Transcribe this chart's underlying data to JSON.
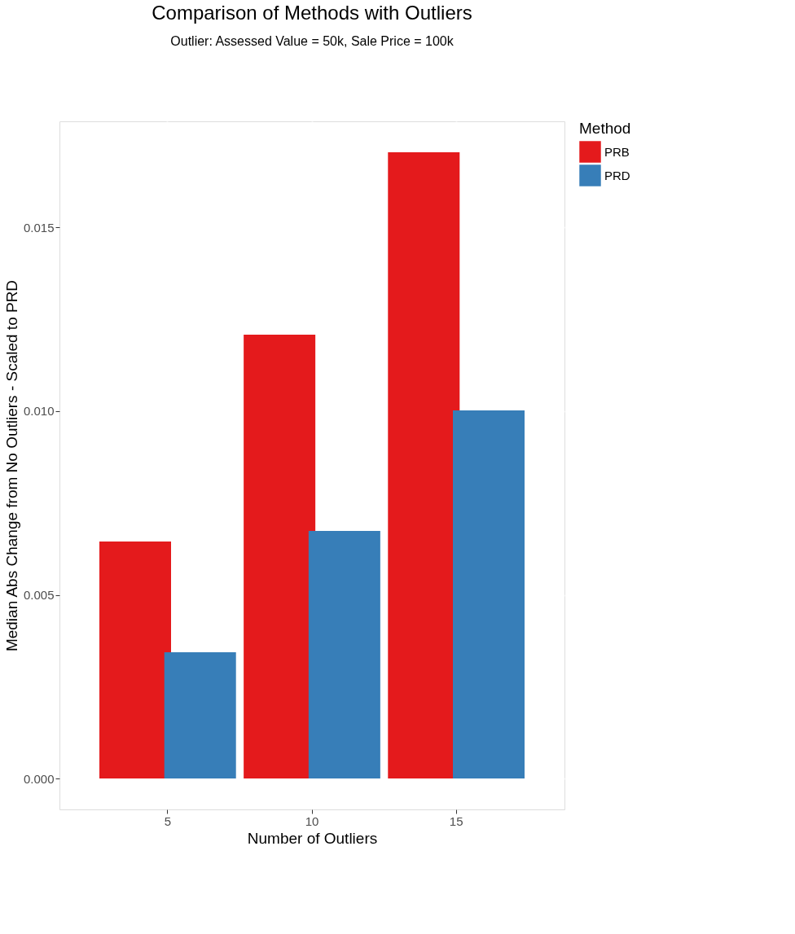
{
  "chart_data": {
    "type": "bar",
    "title": "Comparison of Methods with Outliers",
    "subtitle": "Outlier: Assessed Value = 50k, Sale Price = 100k",
    "xlabel": "Number of Outliers",
    "ylabel": "Median Abs Change from No Outliers - Scaled to PRD",
    "legend_title": "Method",
    "categories": [
      "5",
      "10",
      "15"
    ],
    "series": [
      {
        "name": "PRB",
        "color": "#e41a1c",
        "values": [
          0.00645,
          0.01208,
          0.01705
        ]
      },
      {
        "name": "PRD",
        "color": "#377eb8",
        "values": [
          0.00344,
          0.00674,
          0.01002
        ]
      }
    ],
    "ylim": [
      -0.00084,
      0.01789
    ],
    "yticks": [
      {
        "value": 0,
        "label": "0.000"
      },
      {
        "value": 0.005,
        "label": "0.005"
      },
      {
        "value": 0.01,
        "label": "0.010"
      },
      {
        "value": 0.015,
        "label": "0.015"
      }
    ],
    "grid": true,
    "legend": "right"
  }
}
